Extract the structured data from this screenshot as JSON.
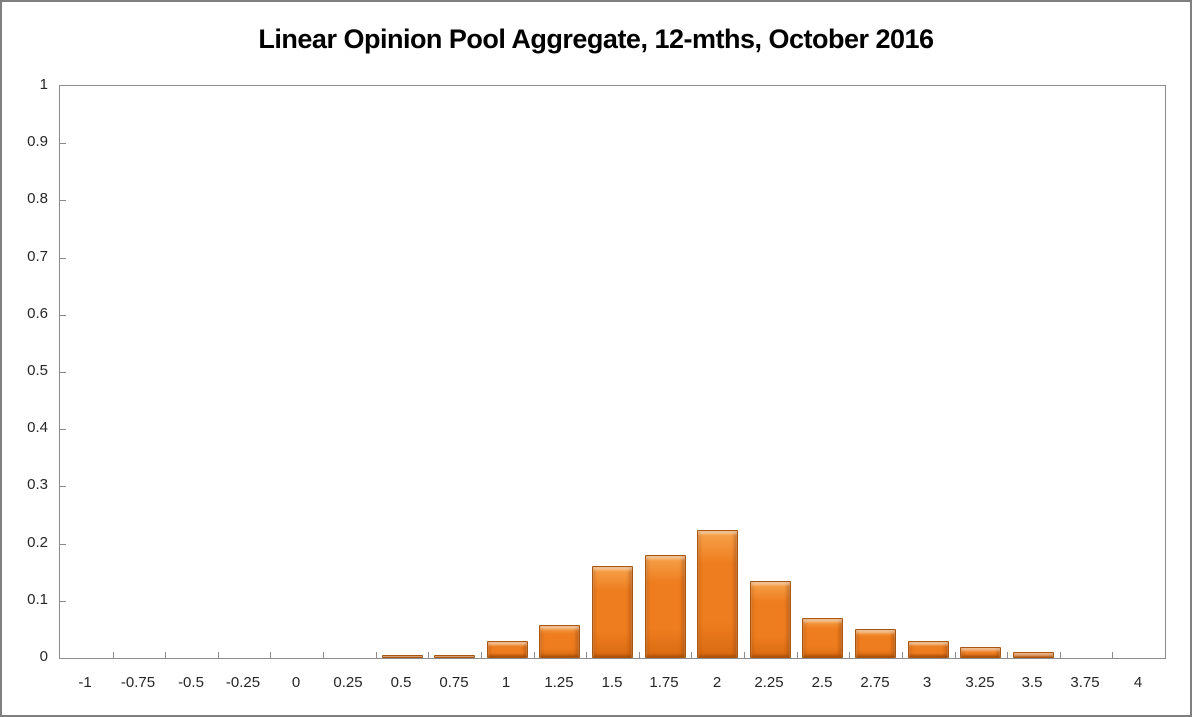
{
  "chart_data": {
    "type": "bar",
    "title": "Linear Opinion Pool Aggregate, 12-mths, October 2016",
    "categories": [
      "-1",
      "-0.75",
      "-0.5",
      "-0.25",
      "0",
      "0.25",
      "0.5",
      "0.75",
      "1",
      "1.25",
      "1.5",
      "1.75",
      "2",
      "2.25",
      "2.5",
      "2.75",
      "3",
      "3.25",
      "3.5",
      "3.75",
      "4"
    ],
    "values": [
      0,
      0,
      0,
      0,
      0,
      0,
      0.005,
      0.005,
      0.03,
      0.057,
      0.16,
      0.18,
      0.224,
      0.135,
      0.07,
      0.05,
      0.03,
      0.02,
      0.01,
      0,
      0
    ],
    "xlabel": "",
    "ylabel": "",
    "ylim": [
      0,
      1
    ],
    "y_tick_step": 0.1,
    "y_tick_labels": [
      "1",
      "0.9",
      "0.8",
      "0.7",
      "0.6",
      "0.5",
      "0.4",
      "0.3",
      "0.2",
      "0.1",
      "0"
    ],
    "grid": false,
    "legend": "none",
    "tick_style": "inside",
    "colors": {
      "bar_fill": "#EE7D1F",
      "bar_highlight": "#F7A34C",
      "bar_shade": "#D96A10",
      "bar_border": "#A9570E",
      "axis_line": "#8C8C8C",
      "text": "#262626",
      "frame_border": "#7F7F7F",
      "background": "#FFFFFF"
    }
  }
}
